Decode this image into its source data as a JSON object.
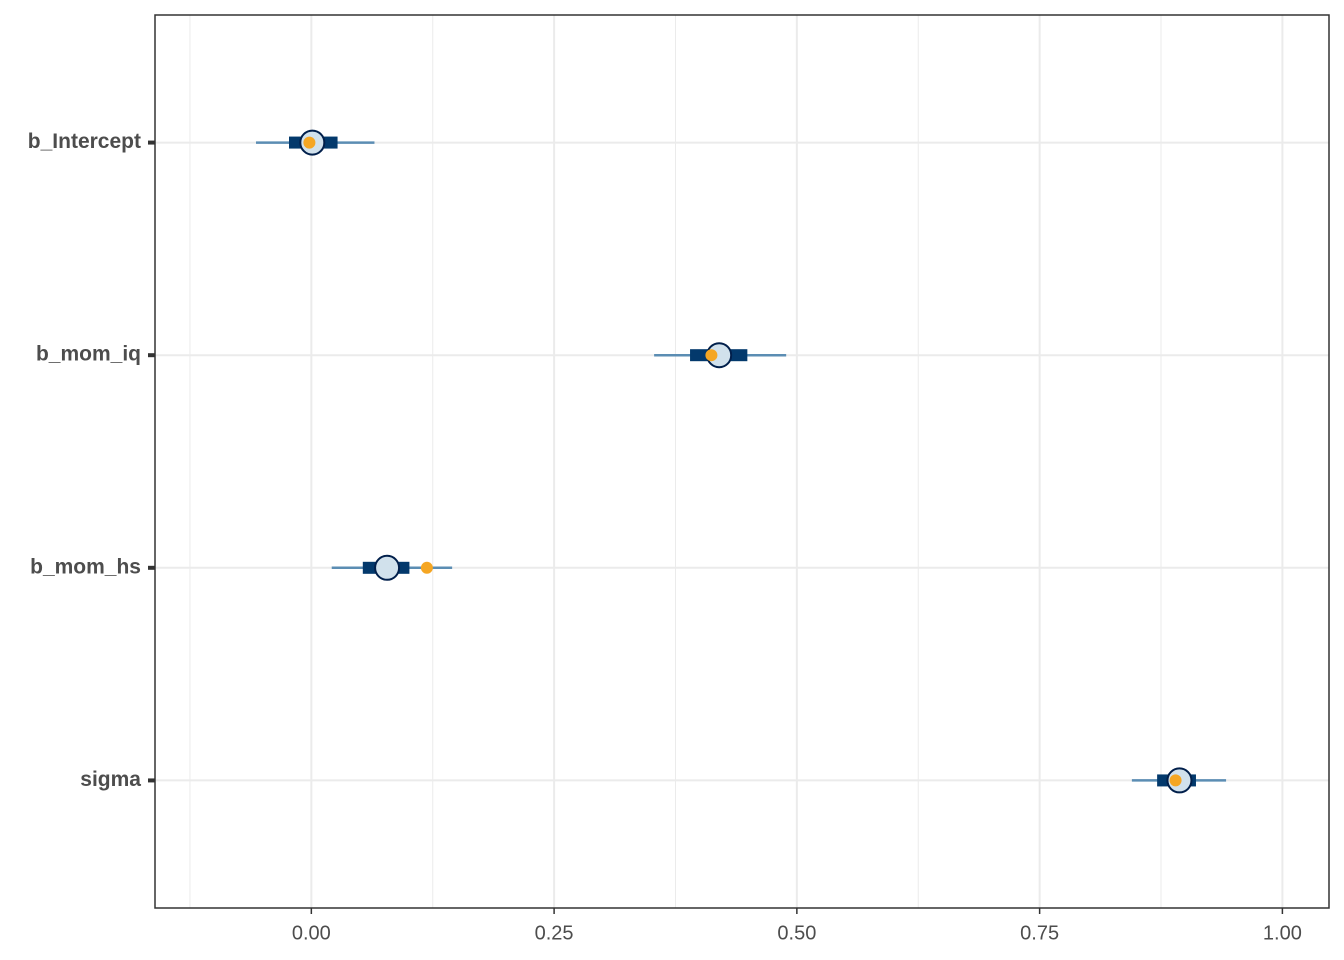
{
  "chart_data": {
    "type": "intervals",
    "categories": [
      "b_Intercept",
      "b_mom_iq",
      "b_mom_hs",
      "sigma"
    ],
    "outer_low": [
      -0.057,
      0.353,
      0.021,
      0.845
    ],
    "inner_low": [
      -0.023,
      0.39,
      0.053,
      0.871
    ],
    "median": [
      0.001,
      0.42,
      0.078,
      0.894
    ],
    "inner_high": [
      0.027,
      0.449,
      0.101,
      0.911
    ],
    "outer_high": [
      0.065,
      0.489,
      0.145,
      0.942
    ],
    "true_values": [
      -0.002,
      0.412,
      0.119,
      0.89
    ],
    "xlim": [
      -0.161,
      1.048
    ],
    "xticks": [
      {
        "value": 0,
        "label": "0.00"
      },
      {
        "value": 0.25,
        "label": "0.25"
      },
      {
        "value": 0.5,
        "label": "0.50"
      },
      {
        "value": 0.75,
        "label": "0.75"
      },
      {
        "value": 1,
        "label": "1.00"
      }
    ],
    "xminorticks": [
      -0.125,
      0.125,
      0.375,
      0.625,
      0.875
    ],
    "grid": true,
    "outer_color": "#5b8db3",
    "inner_color": "#03396c",
    "point_fill": "#d1e1ec",
    "point_stroke": "#011f4b",
    "true_color": "#f5a623"
  }
}
